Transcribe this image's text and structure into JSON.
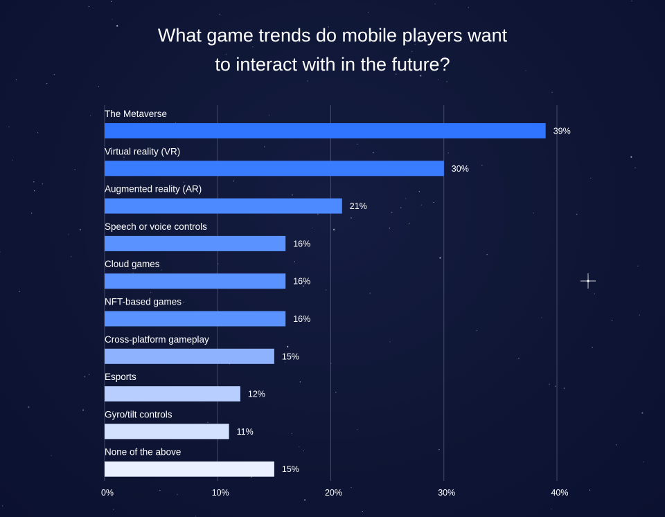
{
  "title_lines": [
    "What game trends do mobile players want",
    "to interact with in the future?"
  ],
  "colors": {
    "background": "#0f1635",
    "gridline": "#5a6080",
    "bar_gradient_dark": "#2f75ff",
    "bar_gradient_light": "#e9efff"
  },
  "chart_data": {
    "type": "bar",
    "orientation": "horizontal",
    "title": "What game trends do mobile players want to interact with in the future?",
    "xlabel": "",
    "ylabel": "",
    "xlim": [
      0,
      40
    ],
    "x_ticks": [
      0,
      10,
      20,
      30,
      40
    ],
    "x_tick_labels": [
      "0%",
      "10%",
      "20%",
      "30%",
      "40%"
    ],
    "grid": "vertical",
    "categories": [
      "The Metaverse",
      "Virtual reality (VR)",
      "Augmented reality (AR)",
      "Speech or voice controls",
      "Cloud games",
      "NFT-based games",
      "Cross-platform gameplay",
      "Esports",
      "Gyro/tilt controls",
      "None of the above"
    ],
    "values": [
      39,
      30,
      21,
      16,
      16,
      16,
      15,
      12,
      11,
      15
    ],
    "value_labels": [
      "39%",
      "30%",
      "21%",
      "16%",
      "16%",
      "16%",
      "15%",
      "12%",
      "11%",
      "15%"
    ],
    "bar_colors": [
      "#2f75ff",
      "#3a7cff",
      "#4d89ff",
      "#5a92ff",
      "#5a92ff",
      "#5a92ff",
      "#8fb2ff",
      "#b7ceff",
      "#d3e1ff",
      "#eaf0ff"
    ]
  }
}
